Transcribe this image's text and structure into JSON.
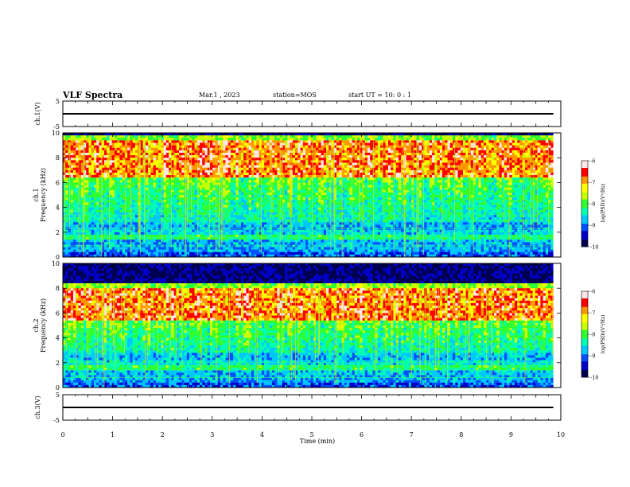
{
  "header": {
    "title": "VLF Spectra",
    "date": "Mar.1  , 2023",
    "station": "station=MOS",
    "start_time": "start  UT  =   10: 0   : 1"
  },
  "chart_data": [
    {
      "type": "line",
      "panel": "ch1-waveform",
      "ylabel": "ch.1(V)",
      "ylim": [
        -5,
        5
      ],
      "yticks": [
        "5",
        "-5"
      ],
      "xlim": [
        0,
        10
      ],
      "series": [
        {
          "x": [
            0,
            9.85
          ],
          "y": [
            0,
            0
          ]
        }
      ]
    },
    {
      "type": "heatmap",
      "panel": "ch1-spectrogram",
      "ylabel_top": "ch.1",
      "ylabel": "Frequency (kHz)",
      "ylim": [
        0,
        10
      ],
      "yticks": [
        "0",
        "2",
        "4",
        "6",
        "8",
        "10"
      ],
      "xlim": [
        0,
        10
      ],
      "data_end_min": 9.85,
      "dominant_band_khz": [
        6.5,
        9.3
      ],
      "colorbar": {
        "label": "log(PSD)(V²/Hz)",
        "range": [
          -10,
          -6
        ],
        "ticks": [
          "-6",
          "-7",
          "-8",
          "-9",
          "-10"
        ]
      }
    },
    {
      "type": "heatmap",
      "panel": "ch2-spectrogram",
      "ylabel_top": "ch.2",
      "ylabel": "Frequency (kHz)",
      "ylim": [
        0,
        10
      ],
      "yticks": [
        "0",
        "2",
        "4",
        "6",
        "8",
        "10"
      ],
      "xlim": [
        0,
        10
      ],
      "data_end_min": 9.85,
      "dominant_band_khz": [
        5.5,
        8.0
      ],
      "colorbar": {
        "label": "log(PSD)(V²/Hz)",
        "range": [
          -10,
          -6
        ],
        "ticks": [
          "-6",
          "-7",
          "-8",
          "-9",
          "-10"
        ]
      }
    },
    {
      "type": "line",
      "panel": "ch3-waveform",
      "ylabel": "ch.3(V)",
      "ylim": [
        -5,
        5
      ],
      "yticks": [
        "5",
        "-5"
      ],
      "xlim": [
        0,
        10
      ],
      "series": [
        {
          "x": [
            0,
            9.85
          ],
          "y": [
            0,
            0
          ]
        }
      ]
    }
  ],
  "xaxis": {
    "label": "Time  (min)",
    "ticks": [
      "0",
      "1",
      "2",
      "3",
      "4",
      "5",
      "6",
      "7",
      "8",
      "9",
      "10"
    ]
  },
  "colormap": [
    "#000050",
    "#0000c8",
    "#0050ff",
    "#00c8ff",
    "#00ffb0",
    "#30ff30",
    "#c8ff00",
    "#ffff00",
    "#ff9600",
    "#ff0000",
    "#ffe6e6"
  ]
}
